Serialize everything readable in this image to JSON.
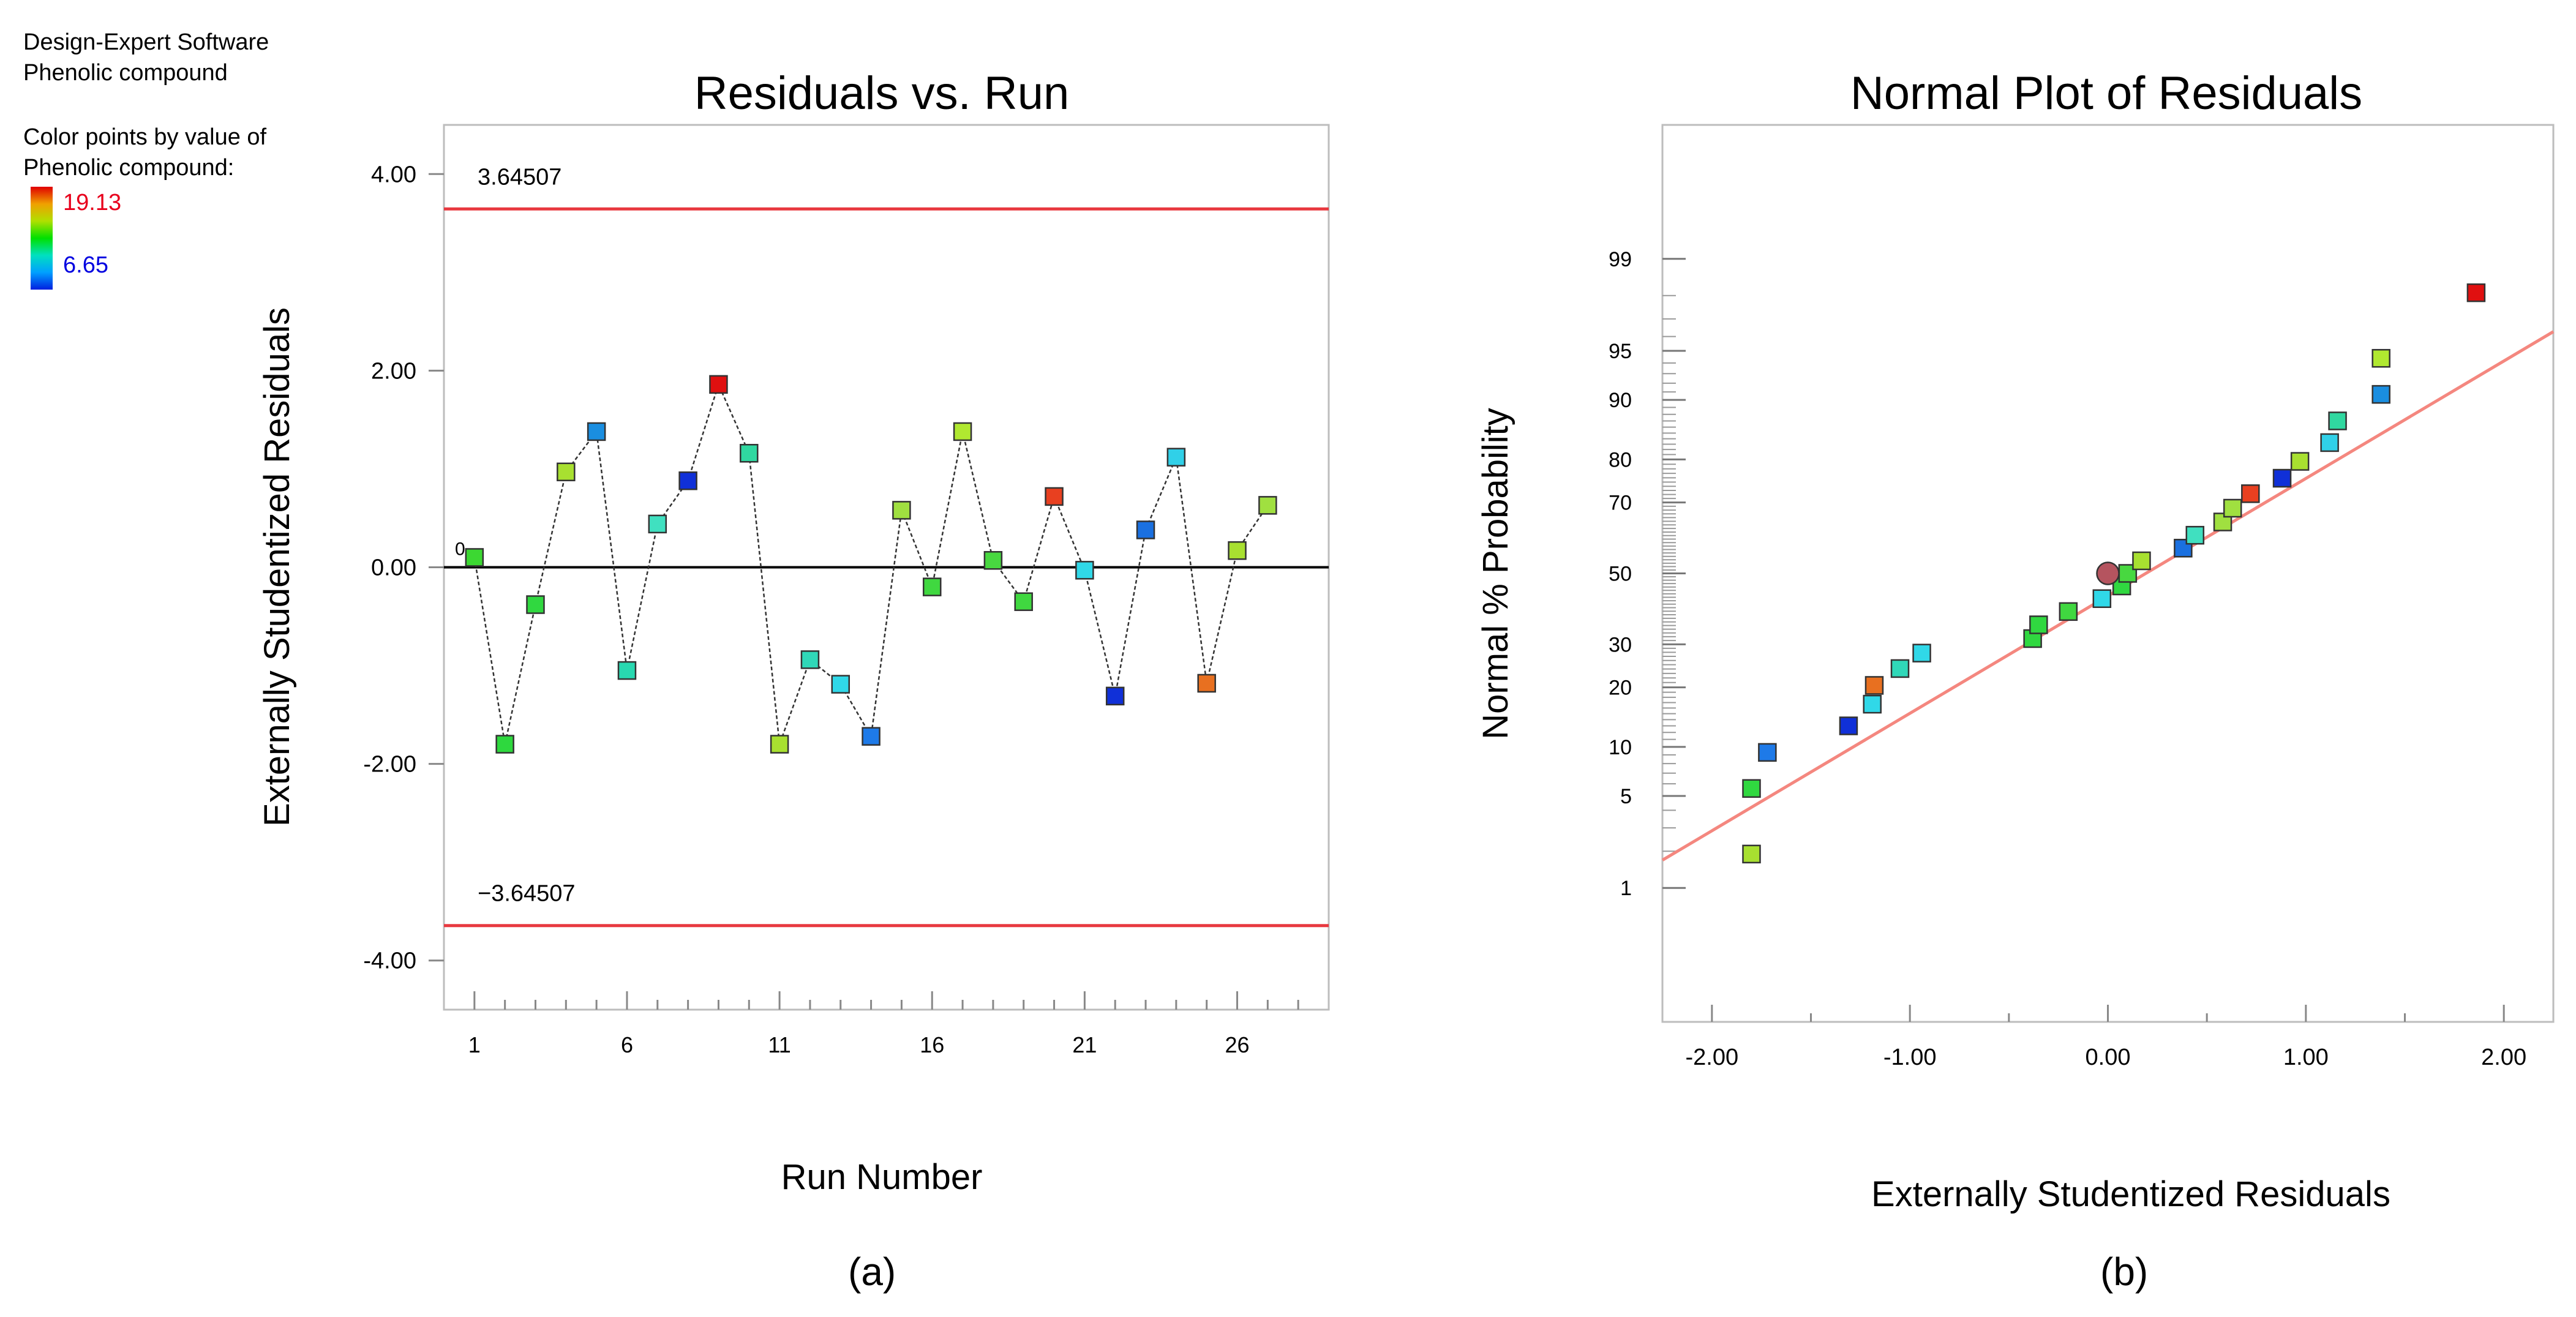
{
  "header": {
    "line1": "Design-Expert Software",
    "line2": "Phenolic compound",
    "line3": "Color points by value of",
    "line4": "Phenolic compound:"
  },
  "color_legend": {
    "max_label": "19.13",
    "min_label": "6.65",
    "max_value": 19.13,
    "min_value": 6.65,
    "max_color": "#e8001c",
    "min_color": "#0000e0",
    "gradient": [
      "#e00000",
      "#f0a000",
      "#b0e000",
      "#00e000",
      "#00e0c0",
      "#00a0ff",
      "#0020e0"
    ]
  },
  "colors": {
    "limit_line": "#e8383f",
    "normal_fit_line": "#f4877f",
    "zero_line": "#000000",
    "connector": "#333333",
    "center_point": "#b5545f"
  },
  "panels": {
    "a": {
      "label": "(a)"
    },
    "b": {
      "label": "(b)"
    }
  },
  "chart_data": [
    {
      "type": "scatter",
      "title": "Residuals vs. Run",
      "xlabel": "Run Number",
      "ylabel": "Externally Studentized Residuals",
      "xlim": [
        0,
        29
      ],
      "ylim": [
        -4.5,
        4.5
      ],
      "x_ticks": [
        1,
        6,
        11,
        16,
        21,
        26
      ],
      "y_ticks": [
        -4,
        -2,
        0,
        2,
        4
      ],
      "y_tick_labels": [
        "-4.00",
        "-2.00",
        "0.00",
        "2.00",
        "4.00"
      ],
      "reference_lines": [
        {
          "value": 3.64507,
          "label": "3.64507"
        },
        {
          "value": -3.64507,
          "label": "−3.64507"
        },
        {
          "value": 0,
          "label": "0"
        }
      ],
      "connected": true,
      "points": [
        {
          "run": 1,
          "residual": 0.1,
          "color": "#3cd832"
        },
        {
          "run": 2,
          "residual": -1.8,
          "color": "#2ed83e"
        },
        {
          "run": 3,
          "residual": -0.38,
          "color": "#30d840"
        },
        {
          "run": 4,
          "residual": 0.97,
          "color": "#a8e030"
        },
        {
          "run": 5,
          "residual": 1.38,
          "color": "#1a8ee0"
        },
        {
          "run": 6,
          "residual": -1.05,
          "color": "#28d8b0"
        },
        {
          "run": 7,
          "residual": 0.44,
          "color": "#40e0c0"
        },
        {
          "run": 8,
          "residual": 0.88,
          "color": "#1030d8"
        },
        {
          "run": 9,
          "residual": 1.86,
          "color": "#e01010"
        },
        {
          "run": 10,
          "residual": 1.16,
          "color": "#30d8a0"
        },
        {
          "run": 11,
          "residual": -1.8,
          "color": "#a8e030"
        },
        {
          "run": 12,
          "residual": -0.94,
          "color": "#30d8b8"
        },
        {
          "run": 13,
          "residual": -1.19,
          "color": "#30d8e8"
        },
        {
          "run": 14,
          "residual": -1.72,
          "color": "#1e7ae8"
        },
        {
          "run": 15,
          "residual": 0.58,
          "color": "#a0e040"
        },
        {
          "run": 16,
          "residual": -0.2,
          "color": "#40d840"
        },
        {
          "run": 17,
          "residual": 1.38,
          "color": "#b0e830"
        },
        {
          "run": 18,
          "residual": 0.07,
          "color": "#48d840"
        },
        {
          "run": 19,
          "residual": -0.35,
          "color": "#40d840"
        },
        {
          "run": 20,
          "residual": 0.72,
          "color": "#e84020"
        },
        {
          "run": 21,
          "residual": -0.03,
          "color": "#30d8e8"
        },
        {
          "run": 22,
          "residual": -1.31,
          "color": "#1030d8"
        },
        {
          "run": 23,
          "residual": 0.38,
          "color": "#1a70e0"
        },
        {
          "run": 24,
          "residual": 1.12,
          "color": "#30d0e8"
        },
        {
          "run": 25,
          "residual": -1.18,
          "color": "#e87020"
        },
        {
          "run": 26,
          "residual": 0.17,
          "color": "#a8e030"
        },
        {
          "run": 27,
          "residual": 0.63,
          "color": "#a0e040"
        }
      ]
    },
    {
      "type": "scatter",
      "title": "Normal Plot of Residuals",
      "xlabel": "Externally Studentized Residuals",
      "ylabel": "Normal % Probability",
      "xlim": [
        -2.25,
        2.25
      ],
      "x_ticks": [
        -2,
        -1,
        0,
        1,
        2
      ],
      "x_tick_labels": [
        "-2.00",
        "-1.00",
        "0.00",
        "1.00",
        "2.00"
      ],
      "y_scale": "normal probability",
      "y_ticks": [
        1,
        5,
        10,
        20,
        30,
        50,
        70,
        80,
        90,
        95,
        99
      ],
      "fit_line": {
        "x": [
          -2.25,
          2.25
        ],
        "p": [
          1.7,
          96.3
        ]
      },
      "points": [
        {
          "residual": -1.8,
          "probability": 1.9,
          "color": "#a8e030"
        },
        {
          "residual": -1.8,
          "probability": 5.6,
          "color": "#30d840"
        },
        {
          "residual": -1.72,
          "probability": 9.3,
          "color": "#1e7ae8"
        },
        {
          "residual": -1.31,
          "probability": 13.0,
          "color": "#1030d8"
        },
        {
          "residual": -1.19,
          "probability": 16.7,
          "color": "#30d8e8"
        },
        {
          "residual": -1.18,
          "probability": 20.4,
          "color": "#e87020"
        },
        {
          "residual": -1.05,
          "probability": 24.1,
          "color": "#30d8b8"
        },
        {
          "residual": -0.94,
          "probability": 27.8,
          "color": "#30d8e8"
        },
        {
          "residual": -0.38,
          "probability": 31.5,
          "color": "#30d840"
        },
        {
          "residual": -0.35,
          "probability": 35.2,
          "color": "#30d840"
        },
        {
          "residual": -0.2,
          "probability": 38.9,
          "color": "#40d840"
        },
        {
          "residual": -0.03,
          "probability": 42.6,
          "color": "#30d8e8"
        },
        {
          "residual": 0.07,
          "probability": 46.3,
          "color": "#30d840"
        },
        {
          "residual": 0.1,
          "probability": 50.0,
          "color": "#48d840"
        },
        {
          "residual": 0.17,
          "probability": 53.7,
          "color": "#a8e030"
        },
        {
          "residual": 0.38,
          "probability": 57.4,
          "color": "#1a70e0"
        },
        {
          "residual": 0.44,
          "probability": 61.1,
          "color": "#40e0c0"
        },
        {
          "residual": 0.58,
          "probability": 64.8,
          "color": "#a0e040"
        },
        {
          "residual": 0.63,
          "probability": 68.5,
          "color": "#a0e040"
        },
        {
          "residual": 0.72,
          "probability": 72.2,
          "color": "#e84020"
        },
        {
          "residual": 0.88,
          "probability": 75.9,
          "color": "#1030d8"
        },
        {
          "residual": 0.97,
          "probability": 79.6,
          "color": "#a8e030"
        },
        {
          "residual": 1.12,
          "probability": 83.3,
          "color": "#30d0e8"
        },
        {
          "residual": 1.16,
          "probability": 87.0,
          "color": "#30d8a0"
        },
        {
          "residual": 1.38,
          "probability": 90.7,
          "color": "#1a8ee0"
        },
        {
          "residual": 1.38,
          "probability": 94.4,
          "color": "#b0e830"
        },
        {
          "residual": 1.86,
          "probability": 98.1,
          "color": "#e01010"
        }
      ],
      "center_point": {
        "residual": 0.0,
        "probability": 50.0
      }
    }
  ]
}
